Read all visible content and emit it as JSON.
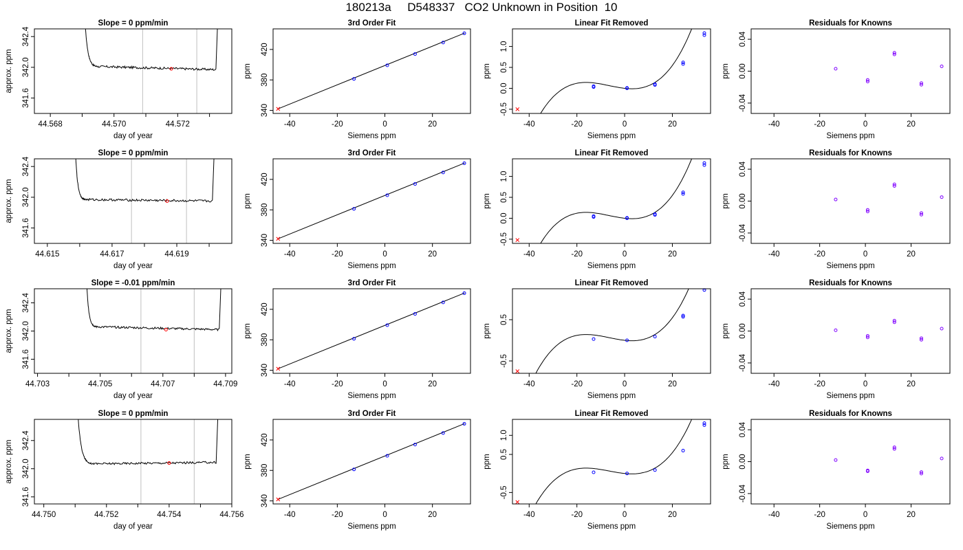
{
  "page": {
    "title": "180213a     D548337   CO2 Unknown in Position  10"
  },
  "colors": {
    "line": "#000000",
    "known": "#0000ff",
    "unknown": "#ff0000",
    "residual": "#7f00ff",
    "window": "#c0c0c0"
  },
  "chart_data": [
    {
      "type": "line",
      "row": 0,
      "col": 0,
      "title": "Slope =  0  ppm/min",
      "xlabel": "day of year",
      "ylabel": "approx. ppm",
      "xlim": [
        44.5675,
        44.5737
      ],
      "ylim": [
        341.4,
        342.5
      ],
      "xticks": [
        44.568,
        44.57,
        44.572
      ],
      "xtick_labels": [
        "44.568",
        "44.570",
        "44.572"
      ],
      "xminor": [
        44.569,
        44.571,
        44.573
      ],
      "yticks": [
        341.6,
        342.0,
        342.4
      ],
      "ytick_labels": [
        "341.6",
        "342.0",
        "342.4"
      ],
      "window": [
        44.5709,
        44.5726
      ],
      "marker": {
        "x": 44.5718,
        "y": 341.98
      },
      "trace": {
        "x_start": 44.569,
        "x_end": 44.5732,
        "plateau_start": 44.5695,
        "level_start": 342.01,
        "level_end": 341.97,
        "x_rise_end": 44.5733
      }
    },
    {
      "type": "scatter",
      "row": 0,
      "col": 1,
      "title": "3rd Order Fit",
      "xlabel": "Siemens ppm",
      "ylabel": "ppm",
      "xlim": [
        -47,
        36
      ],
      "ylim": [
        336,
        447
      ],
      "xticks": [
        -40,
        -20,
        0,
        20
      ],
      "xtick_labels": [
        "-40",
        "-20",
        "0",
        "20"
      ],
      "yticks": [
        340,
        380,
        420
      ],
      "ytick_labels": [
        "340",
        "380",
        "420"
      ],
      "fit_line": [
        [
          -45,
          341.9
        ],
        [
          33.5,
          441.4
        ]
      ],
      "knowns": [
        [
          -13,
          381.3
        ],
        [
          1,
          399.2
        ],
        [
          12.7,
          414.0
        ],
        [
          24.5,
          429.1
        ],
        [
          33.4,
          441.2
        ]
      ],
      "unknowns": [
        [
          -44.9,
          342.0
        ]
      ]
    },
    {
      "type": "scatter",
      "row": 0,
      "col": 2,
      "title": "Linear Fit Removed",
      "xlabel": "Siemens ppm",
      "ylabel": "ppm",
      "xlim": [
        -47,
        36
      ],
      "ylim": [
        -0.6,
        1.42
      ],
      "xticks": [
        -40,
        -20,
        0,
        20
      ],
      "xtick_labels": [
        "-40",
        "-20",
        "0",
        "20"
      ],
      "yticks": [
        -0.5,
        0.0,
        0.5,
        1.0
      ],
      "ytick_labels": [
        "-0.5",
        "0.0",
        "0.5",
        "1.0"
      ],
      "curve": {
        "a": 4.25e-05,
        "b": 0.000833,
        "c": -0.00635,
        "d": 0.0
      },
      "knowns": [
        [
          -13,
          0.05
        ],
        [
          -13,
          0.03
        ],
        [
          1,
          0.01
        ],
        [
          1,
          0.0
        ],
        [
          12.7,
          0.1
        ],
        [
          12.7,
          0.08
        ],
        [
          24.5,
          0.62
        ],
        [
          24.5,
          0.58
        ],
        [
          33.4,
          1.32
        ],
        [
          33.4,
          1.27
        ]
      ],
      "unknowns": [
        [
          -44.9,
          -0.5
        ]
      ]
    },
    {
      "type": "scatter",
      "row": 0,
      "col": 3,
      "title": "Residuals for Knowns",
      "xlabel": "Siemens ppm",
      "ylabel": "ppm",
      "xlim": [
        -50,
        37
      ],
      "ylim": [
        -0.053,
        0.053
      ],
      "xticks": [
        -40,
        -20,
        0,
        20
      ],
      "xtick_labels": [
        "-40",
        "-20",
        "0",
        "20"
      ],
      "yticks": [
        -0.04,
        0.0,
        0.04
      ],
      "ytick_labels": [
        "-0.04",
        "0.00",
        "0.04"
      ],
      "points": [
        [
          -13,
          0.003
        ],
        [
          1,
          -0.011
        ],
        [
          1,
          -0.013
        ],
        [
          12.7,
          0.021
        ],
        [
          12.7,
          0.023
        ],
        [
          24.5,
          -0.015
        ],
        [
          24.5,
          -0.017
        ],
        [
          33.4,
          0.006
        ]
      ]
    },
    {
      "type": "line",
      "row": 1,
      "col": 0,
      "title": "Slope =  0  ppm/min",
      "xlabel": "day of year",
      "ylabel": "approx. ppm",
      "xlim": [
        44.6146,
        44.6207
      ],
      "ylim": [
        341.4,
        342.5
      ],
      "xticks": [
        44.615,
        44.617,
        44.619
      ],
      "xtick_labels": [
        "44.615",
        "44.617",
        "44.619"
      ],
      "xminor": [
        44.616,
        44.618,
        44.62
      ],
      "yticks": [
        341.6,
        342.0,
        342.4
      ],
      "ytick_labels": [
        "341.6",
        "342.0",
        "342.4"
      ],
      "window": [
        44.6176,
        44.6193
      ],
      "marker": {
        "x": 44.6187,
        "y": 341.95
      },
      "trace": {
        "x_start": 44.6158,
        "x_end": 44.6201,
        "plateau_start": 44.6162,
        "level_start": 341.97,
        "level_end": 341.95,
        "x_rise_end": 44.6202
      }
    },
    {
      "type": "scatter",
      "row": 1,
      "col": 1,
      "title": "3rd Order Fit",
      "xlabel": "Siemens ppm",
      "ylabel": "ppm",
      "xlim": [
        -47,
        36
      ],
      "ylim": [
        336,
        447
      ],
      "xticks": [
        -40,
        -20,
        0,
        20
      ],
      "xtick_labels": [
        "-40",
        "-20",
        "0",
        "20"
      ],
      "yticks": [
        340,
        380,
        420
      ],
      "ytick_labels": [
        "340",
        "380",
        "420"
      ],
      "fit_line": [
        [
          -45,
          341.9
        ],
        [
          33.5,
          441.4
        ]
      ],
      "knowns": [
        [
          -13,
          381.3
        ],
        [
          1,
          399.2
        ],
        [
          12.7,
          414.0
        ],
        [
          24.5,
          429.1
        ],
        [
          33.4,
          441.2
        ]
      ],
      "unknowns": [
        [
          -44.9,
          342.0
        ]
      ]
    },
    {
      "type": "scatter",
      "row": 1,
      "col": 2,
      "title": "Linear Fit Removed",
      "xlabel": "Siemens ppm",
      "ylabel": "ppm",
      "xlim": [
        -47,
        36
      ],
      "ylim": [
        -0.6,
        1.42
      ],
      "xticks": [
        -40,
        -20,
        0,
        20
      ],
      "xtick_labels": [
        "-40",
        "-20",
        "0",
        "20"
      ],
      "yticks": [
        -0.5,
        0.0,
        0.5,
        1.0
      ],
      "ytick_labels": [
        "-0.5",
        "0.0",
        "0.5",
        "1.0"
      ],
      "curve": {
        "a": 4.25e-05,
        "b": 0.000833,
        "c": -0.00635,
        "d": 0.0
      },
      "knowns": [
        [
          -13,
          0.05
        ],
        [
          -13,
          0.03
        ],
        [
          1,
          0.01
        ],
        [
          1,
          0.0
        ],
        [
          12.7,
          0.1
        ],
        [
          12.7,
          0.08
        ],
        [
          24.5,
          0.62
        ],
        [
          24.5,
          0.58
        ],
        [
          33.4,
          1.32
        ],
        [
          33.4,
          1.27
        ]
      ],
      "unknowns": [
        [
          -44.9,
          -0.52
        ]
      ]
    },
    {
      "type": "scatter",
      "row": 1,
      "col": 3,
      "title": "Residuals for Knowns",
      "xlabel": "Siemens ppm",
      "ylabel": "ppm",
      "xlim": [
        -50,
        37
      ],
      "ylim": [
        -0.053,
        0.053
      ],
      "xticks": [
        -40,
        -20,
        0,
        20
      ],
      "xtick_labels": [
        "-40",
        "-20",
        "0",
        "20"
      ],
      "yticks": [
        -0.04,
        0.0,
        0.04
      ],
      "ytick_labels": [
        "-0.04",
        "0.00",
        "0.04"
      ],
      "points": [
        [
          -13,
          0.002
        ],
        [
          1,
          -0.011
        ],
        [
          1,
          -0.013
        ],
        [
          12.7,
          0.019
        ],
        [
          12.7,
          0.021
        ],
        [
          24.5,
          -0.015
        ],
        [
          24.5,
          -0.017
        ],
        [
          33.4,
          0.005
        ]
      ]
    },
    {
      "type": "line",
      "row": 2,
      "col": 0,
      "title": "Slope =  -0.01  ppm/min",
      "xlabel": "day of year",
      "ylabel": "approx. ppm",
      "xlim": [
        44.7029,
        44.7092
      ],
      "ylim": [
        341.4,
        342.6
      ],
      "xticks": [
        44.703,
        44.705,
        44.707,
        44.709
      ],
      "xtick_labels": [
        "44.703",
        "44.705",
        "44.707",
        "44.709"
      ],
      "xminor": [
        44.704,
        44.706,
        44.708
      ],
      "yticks": [
        341.6,
        342.0,
        342.4
      ],
      "ytick_labels": [
        "341.6",
        "342.0",
        "342.4"
      ],
      "window": [
        44.7063,
        44.708
      ],
      "marker": {
        "x": 44.7071,
        "y": 342.02
      },
      "trace": {
        "x_start": 44.7045,
        "x_end": 44.7088,
        "plateau_start": 44.7049,
        "level_start": 342.06,
        "level_end": 342.02,
        "x_rise_end": 44.7089
      }
    },
    {
      "type": "scatter",
      "row": 2,
      "col": 1,
      "title": "3rd Order Fit",
      "xlabel": "Siemens ppm",
      "ylabel": "ppm",
      "xlim": [
        -47,
        36
      ],
      "ylim": [
        336,
        447
      ],
      "xticks": [
        -40,
        -20,
        0,
        20
      ],
      "xtick_labels": [
        "-40",
        "-20",
        "0",
        "20"
      ],
      "yticks": [
        340,
        380,
        420
      ],
      "ytick_labels": [
        "340",
        "380",
        "420"
      ],
      "fit_line": [
        [
          -45,
          341.9
        ],
        [
          33.5,
          441.4
        ]
      ],
      "knowns": [
        [
          -13,
          381.3
        ],
        [
          1,
          399.2
        ],
        [
          12.7,
          414.0
        ],
        [
          24.5,
          429.1
        ],
        [
          33.4,
          441.2
        ]
      ],
      "unknowns": [
        [
          -44.9,
          342.0
        ]
      ]
    },
    {
      "type": "scatter",
      "row": 2,
      "col": 2,
      "title": "Linear Fit Removed",
      "xlabel": "Siemens ppm",
      "ylabel": "ppm",
      "xlim": [
        -47,
        36
      ],
      "ylim": [
        -0.8,
        1.25
      ],
      "xticks": [
        -40,
        -20,
        0,
        20
      ],
      "xtick_labels": [
        "-40",
        "-20",
        "0",
        "20"
      ],
      "yticks": [
        -0.5,
        0.5
      ],
      "ytick_labels": [
        "-0.5",
        "0.5"
      ],
      "curve": {
        "a": 4.25e-05,
        "b": 0.000833,
        "c": -0.00635,
        "d": 0.0
      },
      "knowns": [
        [
          -13,
          0.03
        ],
        [
          1,
          0.0
        ],
        [
          12.7,
          0.09
        ],
        [
          24.5,
          0.6
        ],
        [
          24.5,
          0.57
        ],
        [
          33.4,
          1.27
        ],
        [
          33.4,
          1.22
        ]
      ],
      "unknowns": [
        [
          -44.9,
          -0.75
        ]
      ]
    },
    {
      "type": "scatter",
      "row": 2,
      "col": 3,
      "title": "Residuals for Knowns",
      "xlabel": "Siemens ppm",
      "ylabel": "ppm",
      "xlim": [
        -50,
        37
      ],
      "ylim": [
        -0.053,
        0.053
      ],
      "xticks": [
        -40,
        -20,
        0,
        20
      ],
      "xtick_labels": [
        "-40",
        "-20",
        "0",
        "20"
      ],
      "yticks": [
        -0.04,
        0.0,
        0.04
      ],
      "ytick_labels": [
        "-0.04",
        "0.00",
        "0.04"
      ],
      "points": [
        [
          -13,
          0.001
        ],
        [
          1,
          -0.006
        ],
        [
          1,
          -0.008
        ],
        [
          12.7,
          0.011
        ],
        [
          12.7,
          0.013
        ],
        [
          24.5,
          -0.009
        ],
        [
          24.5,
          -0.011
        ],
        [
          33.4,
          0.003
        ]
      ]
    },
    {
      "type": "line",
      "row": 3,
      "col": 0,
      "title": "Slope =  0  ppm/min",
      "xlabel": "day of year",
      "ylabel": "approx. ppm",
      "xlim": [
        44.7497,
        44.756
      ],
      "ylim": [
        341.5,
        342.7
      ],
      "xticks": [
        44.75,
        44.752,
        44.754,
        44.756
      ],
      "xtick_labels": [
        "44.750",
        "44.752",
        "44.754",
        "44.756"
      ],
      "xminor": [
        44.751,
        44.753,
        44.755
      ],
      "yticks": [
        341.6,
        342.0,
        342.4
      ],
      "ytick_labels": [
        "341.6",
        "342.0",
        "342.4"
      ],
      "window": [
        44.7531,
        44.7548
      ],
      "marker": {
        "x": 44.754,
        "y": 342.08
      },
      "trace": {
        "x_start": 44.751,
        "x_end": 44.7555,
        "plateau_start": 44.7516,
        "level_start": 342.07,
        "level_end": 342.09,
        "x_rise_end": 44.7556
      }
    },
    {
      "type": "scatter",
      "row": 3,
      "col": 1,
      "title": "3rd Order Fit",
      "xlabel": "Siemens ppm",
      "ylabel": "ppm",
      "xlim": [
        -47,
        36
      ],
      "ylim": [
        336,
        447
      ],
      "xticks": [
        -40,
        -20,
        0,
        20
      ],
      "xtick_labels": [
        "-40",
        "-20",
        "0",
        "20"
      ],
      "yticks": [
        340,
        380,
        420
      ],
      "ytick_labels": [
        "340",
        "380",
        "420"
      ],
      "fit_line": [
        [
          -45,
          341.9
        ],
        [
          33.5,
          441.4
        ]
      ],
      "knowns": [
        [
          -13,
          381.3
        ],
        [
          1,
          399.2
        ],
        [
          12.7,
          414.0
        ],
        [
          24.5,
          429.1
        ],
        [
          33.4,
          441.2
        ]
      ],
      "unknowns": [
        [
          -44.9,
          342.0
        ]
      ]
    },
    {
      "type": "scatter",
      "row": 3,
      "col": 2,
      "title": "Linear Fit Removed",
      "xlabel": "Siemens ppm",
      "ylabel": "ppm",
      "xlim": [
        -47,
        36
      ],
      "ylim": [
        -0.8,
        1.42
      ],
      "xticks": [
        -40,
        -20,
        0,
        20
      ],
      "xtick_labels": [
        "-40",
        "-20",
        "0",
        "20"
      ],
      "yticks": [
        -0.5,
        0.5,
        1.0
      ],
      "ytick_labels": [
        "-0.5",
        "0.5",
        "1.0"
      ],
      "curve": {
        "a": 4.25e-05,
        "b": 0.000833,
        "c": -0.00635,
        "d": 0.0
      },
      "knowns": [
        [
          -13,
          0.03
        ],
        [
          1,
          0.0
        ],
        [
          12.7,
          0.09
        ],
        [
          24.5,
          0.6
        ],
        [
          33.4,
          1.32
        ],
        [
          33.4,
          1.27
        ]
      ],
      "unknowns": [
        [
          -44.9,
          -0.75
        ]
      ]
    },
    {
      "type": "scatter",
      "row": 3,
      "col": 3,
      "title": "Residuals for Knowns",
      "xlabel": "Siemens ppm",
      "ylabel": "ppm",
      "xlim": [
        -50,
        37
      ],
      "ylim": [
        -0.053,
        0.053
      ],
      "xticks": [
        -40,
        -20,
        0,
        20
      ],
      "xtick_labels": [
        "-40",
        "-20",
        "0",
        "20"
      ],
      "yticks": [
        -0.04,
        0.0,
        0.04
      ],
      "ytick_labels": [
        "-0.04",
        "0.00",
        "0.04"
      ],
      "points": [
        [
          -13,
          0.002
        ],
        [
          1,
          -0.011
        ],
        [
          1,
          -0.012
        ],
        [
          12.7,
          0.016
        ],
        [
          12.7,
          0.018
        ],
        [
          24.5,
          -0.013
        ],
        [
          24.5,
          -0.015
        ],
        [
          33.4,
          0.004
        ]
      ]
    }
  ]
}
